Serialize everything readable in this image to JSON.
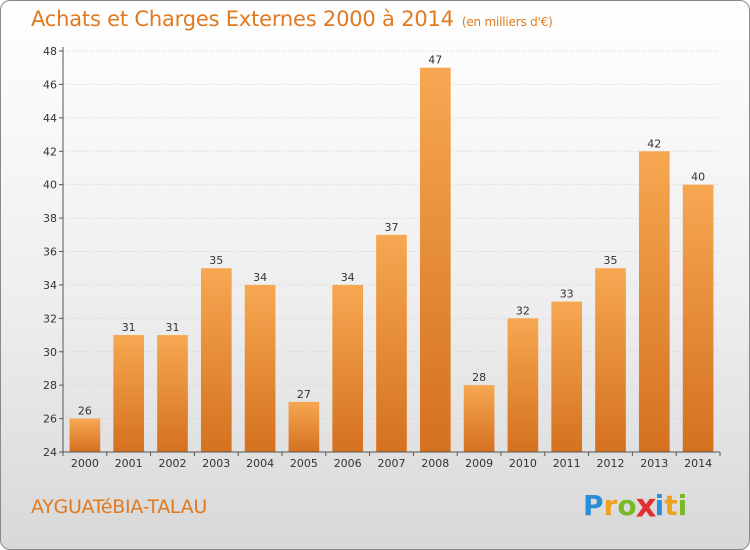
{
  "header": {
    "title": "Achats et Charges Externes 2000 à 2014",
    "subtitle": "(en milliers d'€)"
  },
  "footer": {
    "commune": "AYGUATéBIA-TALAU",
    "logo": "Proxiti",
    "logo_letters": [
      {
        "char": "P",
        "color": "#2a8fd8"
      },
      {
        "char": "r",
        "color": "#f0a020"
      },
      {
        "char": "o",
        "color": "#7ab828"
      },
      {
        "char": "x",
        "color": "#e03030"
      },
      {
        "char": "i",
        "color": "#2a8fd8"
      },
      {
        "char": "t",
        "color": "#f0a020"
      },
      {
        "char": "i",
        "color": "#7ab828"
      }
    ]
  },
  "colors": {
    "bar_light": "#f7a752",
    "bar_dark": "#d4711f",
    "title": "#e07a20"
  },
  "chart_data": {
    "type": "bar",
    "title": "Achats et Charges Externes 2000 à 2014",
    "subtitle": "(en milliers d'€)",
    "categories": [
      "2000",
      "2001",
      "2002",
      "2003",
      "2004",
      "2005",
      "2006",
      "2007",
      "2008",
      "2009",
      "2010",
      "2011",
      "2012",
      "2013",
      "2014"
    ],
    "values": [
      26,
      31,
      31,
      35,
      34,
      27,
      34,
      37,
      47,
      28,
      32,
      33,
      35,
      42,
      40
    ],
    "ylim": [
      24,
      48
    ],
    "yticks": [
      24,
      26,
      28,
      30,
      32,
      34,
      36,
      38,
      40,
      42,
      44,
      46,
      48
    ],
    "grid": true,
    "xlabel": "",
    "ylabel": ""
  }
}
